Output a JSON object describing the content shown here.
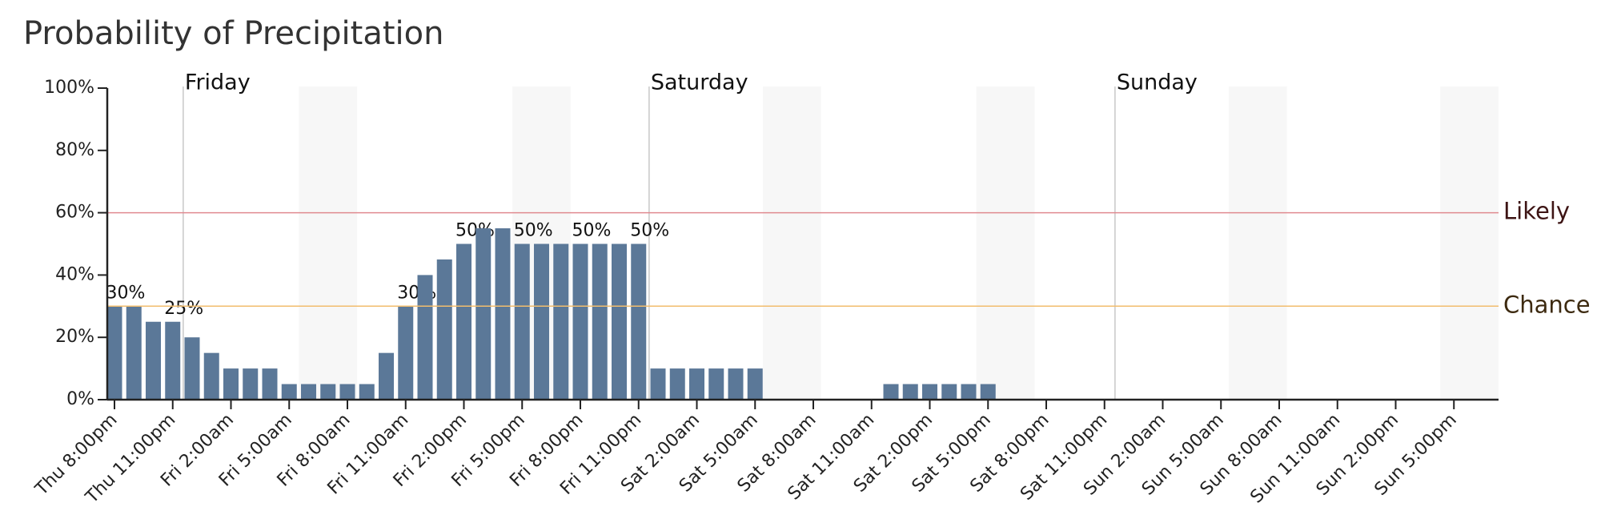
{
  "chart_data": {
    "type": "bar",
    "title": "Probability of Precipitation",
    "color": "#5b7898",
    "categories": [
      "Thu 8:00pm",
      null,
      null,
      "Thu 11:00pm",
      null,
      null,
      "Fri 2:00am",
      null,
      null,
      "Fri 5:00am",
      null,
      null,
      "Fri 8:00am",
      null,
      null,
      "Fri 11:00am",
      null,
      null,
      "Fri 2:00pm",
      null,
      null,
      "Fri 5:00pm",
      null,
      null,
      "Fri 8:00pm",
      null,
      null,
      "Fri 11:00pm",
      null,
      null,
      "Sat 2:00am",
      null,
      null,
      "Sat 5:00am",
      null,
      null,
      "Sat 8:00am",
      null,
      null,
      "Sat 11:00am",
      null,
      null,
      "Sat 2:00pm",
      null,
      null,
      "Sat 5:00pm",
      null,
      null,
      "Sat 8:00pm",
      null,
      null,
      "Sat 11:00pm",
      null,
      null,
      "Sun 2:00am",
      null,
      null,
      "Sun 5:00am",
      null,
      null,
      "Sun 8:00am",
      null,
      null,
      "Sun 11:00am",
      null,
      null,
      "Sun 2:00pm",
      null,
      null,
      "Sun 5:00pm",
      null,
      null
    ],
    "values": [
      30,
      30,
      25,
      25,
      20,
      15,
      10,
      10,
      10,
      5,
      5,
      5,
      5,
      5,
      15,
      30,
      40,
      45,
      50,
      55,
      55,
      50,
      50,
      50,
      50,
      50,
      50,
      50,
      10,
      10,
      10,
      10,
      10,
      10,
      0,
      0,
      0,
      0,
      0,
      0,
      5,
      5,
      5,
      5,
      5,
      5,
      0,
      0,
      0,
      0,
      0,
      0,
      0,
      0,
      0,
      0,
      0,
      0,
      0,
      0,
      0,
      0,
      0,
      0,
      0,
      0,
      0,
      0,
      0,
      0,
      0,
      0
    ],
    "value_labels": [
      "30%",
      null,
      null,
      "25%",
      null,
      null,
      null,
      null,
      null,
      null,
      null,
      null,
      null,
      null,
      null,
      "30%",
      null,
      null,
      "50%",
      null,
      null,
      "50%",
      null,
      null,
      "50%",
      null,
      null,
      "50%",
      null,
      null,
      null,
      null,
      null,
      null,
      null,
      null,
      null,
      null,
      null,
      null,
      null,
      null,
      null,
      null,
      null,
      null,
      null,
      null,
      null,
      null,
      null,
      null,
      null,
      null,
      null,
      null,
      null,
      null,
      null,
      null,
      null,
      null,
      null,
      null,
      null,
      null,
      null,
      null,
      null,
      null,
      null,
      null
    ],
    "ylim": [
      0,
      100
    ],
    "yticks": [
      {
        "value": 0,
        "label": "0%"
      },
      {
        "value": 20,
        "label": "20%"
      },
      {
        "value": 40,
        "label": "40%"
      },
      {
        "value": 60,
        "label": "60%"
      },
      {
        "value": 80,
        "label": "80%"
      },
      {
        "value": 100,
        "label": "100%"
      }
    ],
    "day_markers": [
      {
        "label": "Friday",
        "index": 4
      },
      {
        "label": "Saturday",
        "index": 28
      },
      {
        "label": "Sunday",
        "index": 52
      }
    ],
    "thresholds": [
      {
        "label": "Likely",
        "value": 60,
        "color": "#e08a90",
        "text_color": "#3d1414"
      },
      {
        "label": "Chance",
        "value": 30,
        "color": "#f2bd6e",
        "text_color": "#3d2a10"
      }
    ]
  }
}
